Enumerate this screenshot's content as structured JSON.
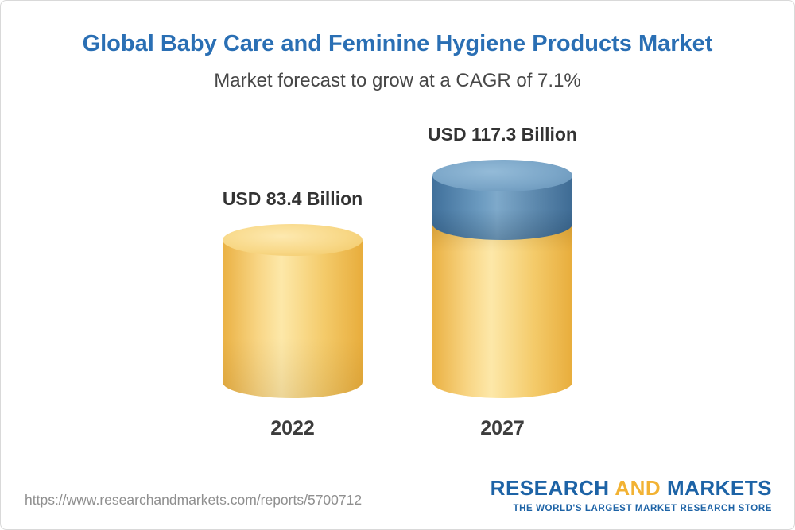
{
  "header": {
    "title": "Global Baby Care and Feminine Hygiene Products Market",
    "subtitle": "Market forecast to grow at a CAGR of 7.1%"
  },
  "chart_data": {
    "type": "bar",
    "subtype": "3d-cylinder",
    "title": "Global Baby Care and Feminine Hygiene Products Market",
    "subtitle": "Market forecast to grow at a CAGR of 7.1%",
    "cagr_percent": 7.1,
    "unit": "USD Billion",
    "categories": [
      "2022",
      "2027"
    ],
    "values": [
      83.4,
      117.3
    ],
    "value_labels": [
      "USD 83.4 Billion",
      "USD 117.3 Billion"
    ],
    "ylim": [
      0,
      120
    ],
    "grid": false,
    "legend": "none",
    "colors": {
      "base_segment": "#f6cf79",
      "growth_segment": "#5b87ac",
      "title_text": "#2a6fb4",
      "label_text": "#333333"
    }
  },
  "footer": {
    "url": "https://www.researchandmarkets.com/reports/5700712",
    "logo": {
      "part1": "RESEARCH",
      "part2": "AND",
      "part3": "MARKETS",
      "tagline": "THE WORLD'S LARGEST MARKET RESEARCH STORE"
    }
  }
}
